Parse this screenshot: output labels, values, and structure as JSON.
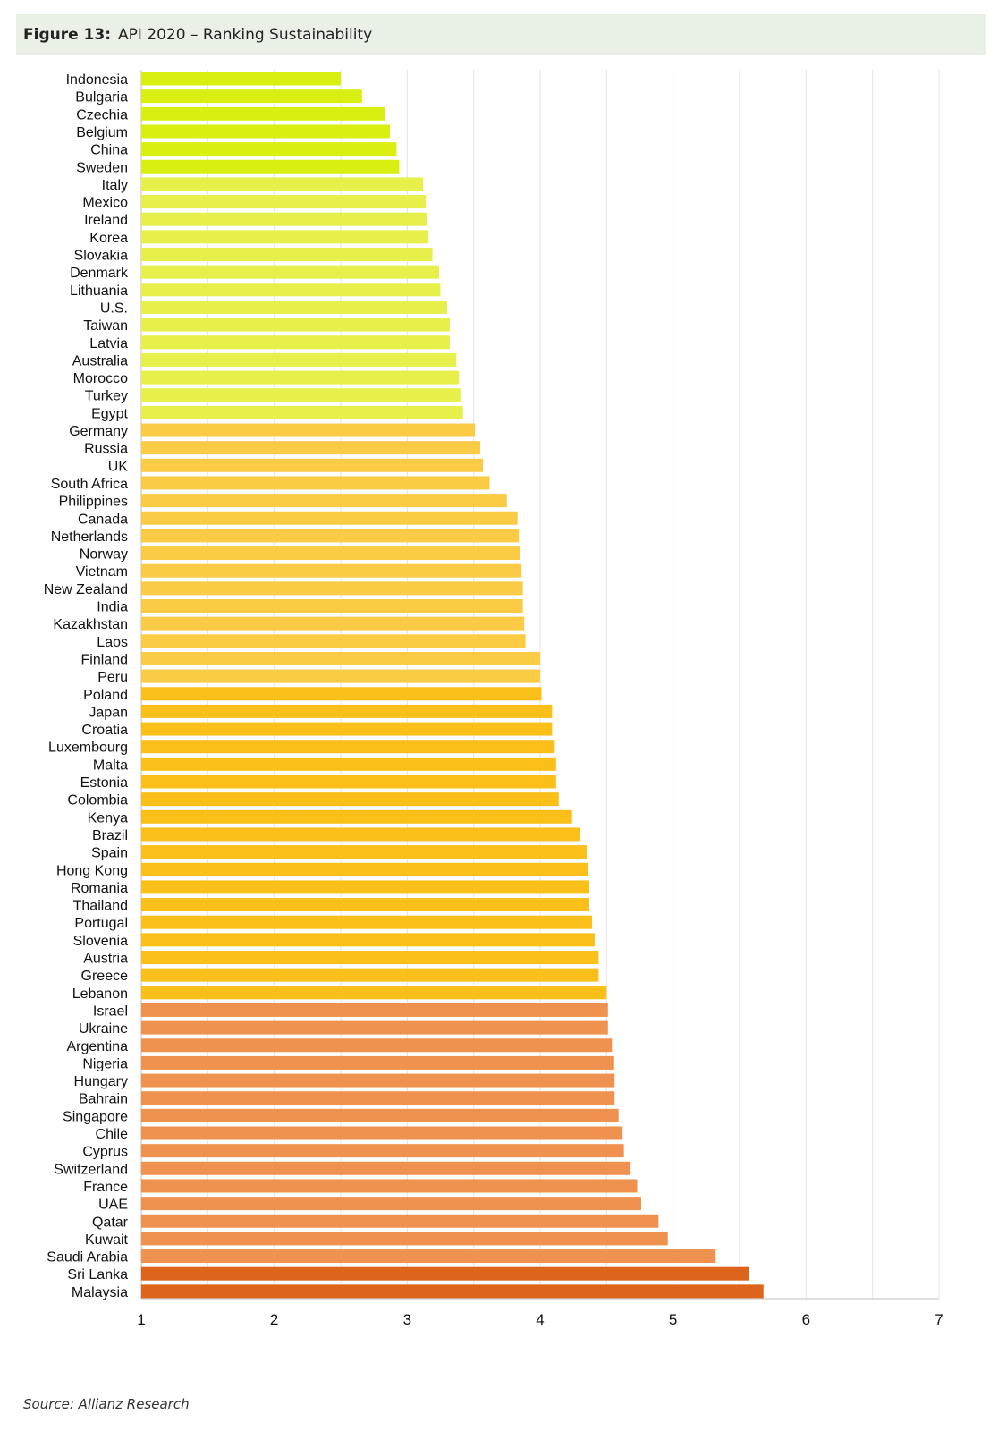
{
  "header": {
    "figure_number": "Figure 13:",
    "title": "API 2020 – Ranking Sustainability"
  },
  "source": "Source:  Allianz Research",
  "colors": {
    "lime": "#d9ef12",
    "yellow_green": "#e7f04a",
    "light_orange": "#fccb45",
    "orange": "#fbbf1a",
    "salmon": "#f0924f",
    "dark_orange": "#dc651b",
    "gridline": "#e3e3e3",
    "axis": "#bfbfbf"
  },
  "chart_data": {
    "type": "bar",
    "orientation": "horizontal",
    "title": "API 2020 – Ranking Sustainability",
    "xlim": [
      1,
      7
    ],
    "x_ticks": [
      1,
      2,
      3,
      4,
      5,
      6,
      7
    ],
    "grid": "vertical",
    "categories": [
      "Indonesia",
      "Bulgaria",
      "Czechia",
      "Belgium",
      "China",
      "Sweden",
      "Italy",
      "Mexico",
      "Ireland",
      "Korea",
      "Slovakia",
      "Denmark",
      "Lithuania",
      "U.S.",
      "Taiwan",
      "Latvia",
      "Australia",
      "Morocco",
      "Turkey",
      "Egypt",
      "Germany",
      "Russia",
      "UK",
      "South Africa",
      "Philippines",
      "Canada",
      "Netherlands",
      "Norway",
      "Vietnam",
      "New Zealand",
      "India",
      "Kazakhstan",
      "Laos",
      "Finland",
      "Peru",
      "Poland",
      "Japan",
      "Croatia",
      "Luxembourg",
      "Malta",
      "Estonia",
      "Colombia",
      "Kenya",
      "Brazil",
      "Spain",
      "Hong Kong",
      "Romania",
      "Thailand",
      "Portugal",
      "Slovenia",
      "Austria",
      "Greece",
      "Lebanon",
      "Israel",
      "Ukraine",
      "Argentina",
      "Nigeria",
      "Hungary",
      "Bahrain",
      "Singapore",
      "Chile",
      "Cyprus",
      "Switzerland",
      "France",
      "UAE",
      "Qatar",
      "Kuwait",
      "Saudi Arabia",
      "Sri Lanka",
      "Malaysia"
    ],
    "values": [
      2.5,
      2.66,
      2.83,
      2.87,
      2.92,
      2.94,
      3.12,
      3.14,
      3.15,
      3.16,
      3.19,
      3.24,
      3.25,
      3.3,
      3.32,
      3.32,
      3.37,
      3.39,
      3.4,
      3.42,
      3.51,
      3.55,
      3.57,
      3.62,
      3.75,
      3.83,
      3.84,
      3.85,
      3.86,
      3.87,
      3.87,
      3.88,
      3.89,
      4.0,
      4.0,
      4.01,
      4.09,
      4.09,
      4.11,
      4.12,
      4.12,
      4.14,
      4.24,
      4.3,
      4.35,
      4.36,
      4.37,
      4.37,
      4.39,
      4.41,
      4.44,
      4.44,
      4.5,
      4.51,
      4.51,
      4.54,
      4.55,
      4.56,
      4.56,
      4.59,
      4.62,
      4.63,
      4.68,
      4.73,
      4.76,
      4.89,
      4.96,
      5.32,
      5.57,
      5.68
    ],
    "bar_color_groups": [
      {
        "color": "#d9ef12",
        "count": 6
      },
      {
        "color": "#e7f04a",
        "count": 14
      },
      {
        "color": "#fccb45",
        "count": 15
      },
      {
        "color": "#fbbf1a",
        "count": 18
      },
      {
        "color": "#f0924f",
        "count": 15
      },
      {
        "color": "#dc651b",
        "count": 2
      }
    ]
  }
}
